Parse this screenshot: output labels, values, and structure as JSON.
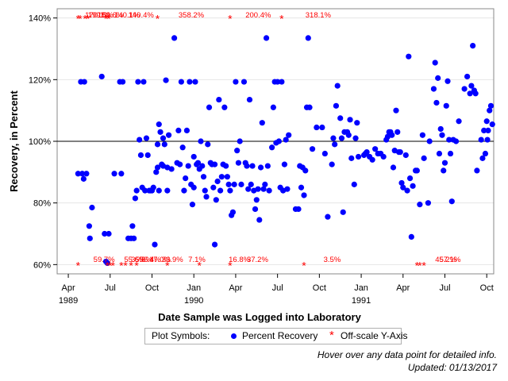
{
  "chart_data": {
    "type": "scatter",
    "xlabel": "Date Sample was Logged into Laboratory",
    "ylabel": "Recovery, in Percent",
    "ylim": [
      57,
      143
    ],
    "y_ticks": [
      "60%",
      "80%",
      "100%",
      "120%",
      "140%"
    ],
    "y_tick_values": [
      60,
      80,
      100,
      120,
      140
    ],
    "reference_line": 100,
    "xlim": [
      -0.8,
      30.5
    ],
    "x_ticks": [
      {
        "label": "Apr",
        "m": 0
      },
      {
        "label": "Jul",
        "m": 3
      },
      {
        "label": "Oct",
        "m": 6
      },
      {
        "label": "Jan",
        "m": 9
      },
      {
        "label": "Apr",
        "m": 12
      },
      {
        "label": "Jul",
        "m": 15
      },
      {
        "label": "Oct",
        "m": 18
      },
      {
        "label": "Jan",
        "m": 21
      },
      {
        "label": "Apr",
        "m": 24
      },
      {
        "label": "Jul",
        "m": 27
      },
      {
        "label": "Oct",
        "m": 30
      }
    ],
    "x_year_labels": [
      {
        "label": "1989",
        "m": 0
      },
      {
        "label": "1990",
        "m": 9
      },
      {
        "label": "1991",
        "m": 21
      }
    ],
    "x_unit_note": "x values are months since Apr 1989",
    "series": [
      {
        "name": "Percent Recovery",
        "color": "#0000ff",
        "points": [
          [
            0.7,
            89.5
          ],
          [
            0.9,
            119.3
          ],
          [
            1.0,
            89.5
          ],
          [
            1.1,
            87.8
          ],
          [
            1.15,
            119.3
          ],
          [
            1.3,
            89.5
          ],
          [
            1.5,
            72.5
          ],
          [
            1.55,
            68.5
          ],
          [
            1.7,
            78.5
          ],
          [
            2.4,
            121
          ],
          [
            2.6,
            70
          ],
          [
            2.7,
            61
          ],
          [
            2.8,
            60.5
          ],
          [
            2.9,
            70
          ],
          [
            3.3,
            89.5
          ],
          [
            3.7,
            119.3
          ],
          [
            3.9,
            119.3
          ],
          [
            3.8,
            89.5
          ],
          [
            4.3,
            68.5
          ],
          [
            4.5,
            68.5
          ],
          [
            4.6,
            72.5
          ],
          [
            4.7,
            68.5
          ],
          [
            4.8,
            81.5
          ],
          [
            4.9,
            84
          ],
          [
            5.0,
            119.3
          ],
          [
            5.1,
            100.5
          ],
          [
            5.2,
            95.5
          ],
          [
            5.3,
            85
          ],
          [
            5.4,
            119.3
          ],
          [
            5.5,
            84
          ],
          [
            5.6,
            101
          ],
          [
            5.7,
            95.5
          ],
          [
            5.8,
            84
          ],
          [
            5.9,
            84
          ],
          [
            6.0,
            84
          ],
          [
            6.1,
            85
          ],
          [
            6.2,
            66.5
          ],
          [
            6.3,
            90
          ],
          [
            6.4,
            91.5
          ],
          [
            6.4,
            99
          ],
          [
            6.5,
            105.5
          ],
          [
            6.5,
            84
          ],
          [
            6.6,
            103
          ],
          [
            6.7,
            92.5
          ],
          [
            6.8,
            92
          ],
          [
            6.8,
            101
          ],
          [
            6.9,
            99
          ],
          [
            7.0,
            119.8
          ],
          [
            7.1,
            91.5
          ],
          [
            7.1,
            84
          ],
          [
            7.2,
            102
          ],
          [
            7.4,
            91
          ],
          [
            7.6,
            133.5
          ],
          [
            7.8,
            93
          ],
          [
            7.9,
            103.5
          ],
          [
            8.0,
            92.5
          ],
          [
            8.1,
            119.3
          ],
          [
            8.2,
            98
          ],
          [
            8.3,
            84
          ],
          [
            8.4,
            88
          ],
          [
            8.5,
            103.5
          ],
          [
            8.6,
            92
          ],
          [
            8.7,
            119.3
          ],
          [
            8.8,
            86
          ],
          [
            8.9,
            79.5
          ],
          [
            9.0,
            85
          ],
          [
            9.0,
            95
          ],
          [
            9.1,
            119.3
          ],
          [
            9.2,
            92.5
          ],
          [
            9.3,
            93
          ],
          [
            9.4,
            91
          ],
          [
            9.5,
            100
          ],
          [
            9.6,
            92
          ],
          [
            9.7,
            88.5
          ],
          [
            9.8,
            84
          ],
          [
            9.9,
            82
          ],
          [
            10.0,
            99
          ],
          [
            10.1,
            111
          ],
          [
            10.2,
            93
          ],
          [
            10.3,
            92.5
          ],
          [
            10.4,
            85
          ],
          [
            10.5,
            92.5
          ],
          [
            10.5,
            66.5
          ],
          [
            10.6,
            81
          ],
          [
            10.7,
            87
          ],
          [
            10.8,
            113.5
          ],
          [
            10.9,
            84
          ],
          [
            11.0,
            88.5
          ],
          [
            11.1,
            92.5
          ],
          [
            11.2,
            111
          ],
          [
            11.3,
            92
          ],
          [
            11.4,
            88.5
          ],
          [
            11.5,
            86
          ],
          [
            11.6,
            84
          ],
          [
            11.7,
            76
          ],
          [
            11.8,
            77
          ],
          [
            11.9,
            86
          ],
          [
            12.0,
            119.3
          ],
          [
            12.1,
            97
          ],
          [
            12.2,
            93
          ],
          [
            12.3,
            100
          ],
          [
            12.4,
            86
          ],
          [
            12.6,
            119.3
          ],
          [
            12.7,
            93
          ],
          [
            12.8,
            92
          ],
          [
            12.9,
            84.5
          ],
          [
            13.0,
            113.5
          ],
          [
            13.1,
            86
          ],
          [
            13.2,
            92
          ],
          [
            13.3,
            84
          ],
          [
            13.4,
            78
          ],
          [
            13.5,
            81
          ],
          [
            13.6,
            84.5
          ],
          [
            13.7,
            74.5
          ],
          [
            13.8,
            91.5
          ],
          [
            13.9,
            106
          ],
          [
            14.0,
            84.5
          ],
          [
            14.1,
            86
          ],
          [
            14.2,
            133.5
          ],
          [
            14.3,
            92
          ],
          [
            14.4,
            84
          ],
          [
            14.6,
            98
          ],
          [
            14.7,
            111
          ],
          [
            14.8,
            119.3
          ],
          [
            14.9,
            99.5
          ],
          [
            15.0,
            119.3
          ],
          [
            15.1,
            100
          ],
          [
            15.2,
            85
          ],
          [
            15.3,
            119.3
          ],
          [
            15.4,
            84
          ],
          [
            15.5,
            92.5
          ],
          [
            15.6,
            100.5
          ],
          [
            15.7,
            84.5
          ],
          [
            15.8,
            102
          ],
          [
            16.3,
            78
          ],
          [
            16.5,
            78
          ],
          [
            16.6,
            92
          ],
          [
            16.7,
            85
          ],
          [
            16.8,
            91.5
          ],
          [
            16.9,
            82.5
          ],
          [
            17.0,
            90.5
          ],
          [
            17.1,
            111
          ],
          [
            17.2,
            133.5
          ],
          [
            17.3,
            111
          ],
          [
            17.5,
            97.5
          ],
          [
            17.8,
            104.5
          ],
          [
            18.2,
            104.5
          ],
          [
            18.4,
            96
          ],
          [
            18.6,
            75.5
          ],
          [
            18.9,
            92.5
          ],
          [
            19.0,
            101
          ],
          [
            19.1,
            99
          ],
          [
            19.2,
            111.5
          ],
          [
            19.3,
            118
          ],
          [
            19.5,
            107.5
          ],
          [
            19.6,
            101
          ],
          [
            19.7,
            77
          ],
          [
            19.8,
            103
          ],
          [
            20.0,
            103
          ],
          [
            20.1,
            102
          ],
          [
            20.2,
            107
          ],
          [
            20.3,
            94.5
          ],
          [
            20.5,
            86
          ],
          [
            20.6,
            101
          ],
          [
            20.7,
            106
          ],
          [
            20.8,
            95
          ],
          [
            21.2,
            95.5
          ],
          [
            21.3,
            96
          ],
          [
            21.4,
            96.5
          ],
          [
            21.6,
            95
          ],
          [
            21.8,
            94
          ],
          [
            22.0,
            97.5
          ],
          [
            22.2,
            96
          ],
          [
            22.4,
            96
          ],
          [
            22.6,
            95
          ],
          [
            22.8,
            100.5
          ],
          [
            22.9,
            101.5
          ],
          [
            23.0,
            103
          ],
          [
            23.1,
            103
          ],
          [
            23.2,
            102
          ],
          [
            23.3,
            91.5
          ],
          [
            23.4,
            97
          ],
          [
            23.5,
            110
          ],
          [
            23.6,
            103
          ],
          [
            23.7,
            96.5
          ],
          [
            23.8,
            96.5
          ],
          [
            23.9,
            86.5
          ],
          [
            24.0,
            85
          ],
          [
            24.2,
            95.5
          ],
          [
            24.3,
            84
          ],
          [
            24.4,
            127.5
          ],
          [
            24.5,
            88
          ],
          [
            24.6,
            69
          ],
          [
            24.7,
            85.5
          ],
          [
            24.9,
            90.5
          ],
          [
            25.0,
            90.5
          ],
          [
            25.2,
            79.5
          ],
          [
            25.4,
            102
          ],
          [
            25.5,
            94.5
          ],
          [
            25.8,
            80
          ],
          [
            25.9,
            100
          ],
          [
            26.2,
            117
          ],
          [
            26.3,
            125.5
          ],
          [
            26.4,
            112.5
          ],
          [
            26.5,
            120.5
          ],
          [
            26.6,
            96
          ],
          [
            26.7,
            104
          ],
          [
            26.8,
            102
          ],
          [
            26.9,
            90.5
          ],
          [
            27.0,
            93
          ],
          [
            27.1,
            111.5
          ],
          [
            27.2,
            119.5
          ],
          [
            27.3,
            100.5
          ],
          [
            27.4,
            96
          ],
          [
            27.5,
            80.5
          ],
          [
            27.6,
            100.5
          ],
          [
            27.8,
            100
          ],
          [
            28.0,
            106.5
          ],
          [
            28.4,
            117
          ],
          [
            28.6,
            121
          ],
          [
            28.8,
            115.5
          ],
          [
            28.9,
            118
          ],
          [
            29.0,
            131
          ],
          [
            29.1,
            116.5
          ],
          [
            29.2,
            115.5
          ],
          [
            29.3,
            90.5
          ],
          [
            29.6,
            100.5
          ],
          [
            29.7,
            94.5
          ],
          [
            29.8,
            103.5
          ],
          [
            29.9,
            96
          ],
          [
            30.0,
            106.5
          ],
          [
            30.05,
            100.5
          ],
          [
            30.1,
            103.5
          ],
          [
            30.2,
            110
          ],
          [
            30.3,
            111.5
          ],
          [
            30.4,
            105.5
          ]
        ]
      },
      {
        "name": "Off-scale Y-Axis",
        "color": "#ff0000",
        "high": [
          {
            "m": 0.7,
            "label": ""
          },
          {
            "m": 0.85,
            "label": ""
          },
          {
            "m": 1.2,
            "label": "170.1%"
          },
          {
            "m": 1.4,
            "label": "199.0%"
          },
          {
            "m": 2.7,
            "label": "152.6%"
          },
          {
            "m": 2.9,
            "label": "140.1%"
          },
          {
            "m": 6.4,
            "label": "358.2%"
          },
          {
            "m": 11.6,
            "label": "200.4%"
          },
          {
            "m": 15.3,
            "label": "318.1%"
          }
        ],
        "high_labels": [
          {
            "m": 1.2,
            "label": "170.1%"
          },
          {
            "m": 1.4,
            "label": "199.0%"
          },
          {
            "m": 2.1,
            "label": "152.6%"
          },
          {
            "m": 3.3,
            "label": "140.1%"
          },
          {
            "m": 4.3,
            "label": "140.4%"
          },
          {
            "m": 7.9,
            "label": "358.2%"
          },
          {
            "m": 12.7,
            "label": "200.4%"
          },
          {
            "m": 17.0,
            "label": "318.1%"
          }
        ],
        "low": [
          0.7,
          2.8,
          3.0,
          3.2,
          3.8,
          4.1,
          4.5,
          4.9,
          7.1,
          9.4,
          11.6,
          16.9,
          25.0,
          25.2,
          25.5
        ],
        "low_labels": [
          {
            "m": 1.8,
            "label": "59.7%"
          },
          {
            "m": 4.0,
            "label": "55.6%"
          },
          {
            "m": 4.5,
            "label": "35.8%"
          },
          {
            "m": 5.1,
            "label": "56.4%"
          },
          {
            "m": 5.8,
            "label": "47.0%"
          },
          {
            "m": 6.7,
            "label": "33.9%"
          },
          {
            "m": 8.6,
            "label": "7.1%"
          },
          {
            "m": 11.5,
            "label": "16.8%"
          },
          {
            "m": 12.8,
            "label": "37.2%"
          },
          {
            "m": 18.3,
            "label": "3.5%"
          },
          {
            "m": 26.3,
            "label": "45.2%"
          },
          {
            "m": 26.6,
            "label": "57.1%"
          }
        ]
      }
    ]
  },
  "legend": {
    "heading": "Plot Symbols:",
    "items": [
      {
        "label": "Percent Recovery",
        "color": "#0000ff",
        "symbol": "dot"
      },
      {
        "label": "Off-scale Y-Axis",
        "color": "#ff0000",
        "symbol": "asterisk"
      }
    ]
  },
  "footnotes": {
    "hover": "Hover over any data point for detailed info.",
    "updated": "Updated: 01/13/2017"
  }
}
